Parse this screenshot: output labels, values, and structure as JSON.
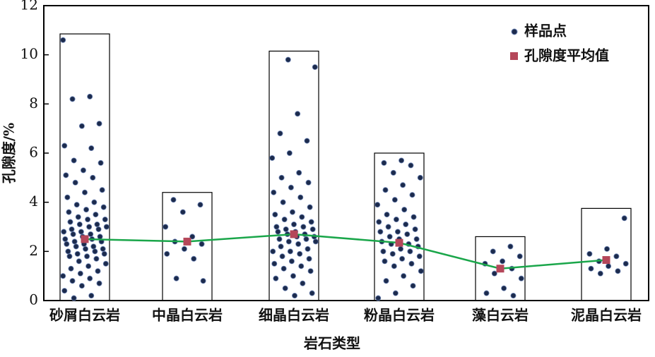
{
  "chart_data": {
    "type": "strip",
    "x_label": "岩石类型",
    "y_label": "孔隙度/%",
    "categories": [
      "砂屑白云岩",
      "中晶白云岩",
      "细晶白云岩",
      "粉晶白云岩",
      "藻白云岩",
      "泥晶白云岩"
    ],
    "box_tops": [
      10.85,
      4.4,
      10.15,
      6.0,
      2.6,
      3.75
    ],
    "series": [
      {
        "name": "样品点",
        "color": "#1c2b4d",
        "values": [
          [
            10.6,
            8.3,
            8.2,
            7.2,
            7.1,
            6.3,
            6.2,
            5.7,
            5.6,
            5.3,
            5.1,
            5.0,
            4.8,
            4.5,
            4.4,
            4.2,
            4.0,
            3.9,
            3.8,
            3.7,
            3.6,
            3.5,
            3.4,
            3.3,
            3.3,
            3.2,
            3.1,
            3.1,
            3.0,
            3.0,
            2.9,
            2.9,
            2.8,
            2.8,
            2.7,
            2.7,
            2.6,
            2.6,
            2.5,
            2.5,
            2.4,
            2.4,
            2.3,
            2.3,
            2.2,
            2.2,
            2.1,
            2.1,
            2.0,
            2.0,
            1.9,
            1.9,
            1.8,
            1.8,
            1.7,
            1.6,
            1.5,
            1.4,
            1.3,
            1.2,
            1.1,
            1.0,
            0.9,
            0.8,
            0.7,
            0.6,
            0.4,
            0.2,
            0.1
          ],
          [
            4.1,
            3.9,
            3.6,
            3.0,
            2.6,
            2.4,
            2.3,
            2.1,
            1.9,
            1.7,
            0.9,
            0.8
          ],
          [
            9.8,
            9.5,
            7.6,
            6.8,
            6.5,
            6.0,
            5.8,
            5.2,
            5.0,
            4.8,
            4.6,
            4.4,
            4.2,
            4.0,
            3.8,
            3.6,
            3.5,
            3.4,
            3.3,
            3.2,
            3.1,
            3.0,
            3.0,
            2.9,
            2.9,
            2.8,
            2.8,
            2.7,
            2.7,
            2.6,
            2.6,
            2.5,
            2.5,
            2.4,
            2.4,
            2.3,
            2.2,
            2.1,
            2.0,
            2.0,
            1.9,
            1.8,
            1.7,
            1.6,
            1.5,
            1.4,
            1.3,
            1.2,
            1.0,
            0.9,
            0.7,
            0.5,
            0.3,
            0.2
          ],
          [
            5.7,
            5.6,
            5.5,
            5.2,
            5.0,
            4.7,
            4.5,
            4.3,
            4.1,
            3.9,
            3.7,
            3.5,
            3.4,
            3.3,
            3.2,
            3.1,
            3.0,
            2.9,
            2.8,
            2.8,
            2.7,
            2.6,
            2.5,
            2.5,
            2.4,
            2.3,
            2.3,
            2.2,
            2.1,
            2.0,
            2.0,
            1.9,
            1.8,
            1.7,
            1.6,
            1.5,
            1.4,
            1.2,
            1.0,
            0.8,
            0.6,
            0.3,
            0.1
          ],
          [
            2.2,
            2.0,
            1.8,
            1.6,
            1.5,
            1.3,
            1.1,
            0.9,
            0.5,
            0.3,
            0.2
          ],
          [
            3.35,
            2.1,
            1.9,
            1.8,
            1.6,
            1.5,
            1.4,
            1.3,
            1.2,
            1.1
          ]
        ]
      },
      {
        "name": "孔隙度平均值",
        "color": "#b5475a",
        "values": [
          2.5,
          2.4,
          2.7,
          2.35,
          1.3,
          1.65
        ]
      }
    ],
    "line_color": "#1aa64a",
    "ylim": [
      0,
      12
    ],
    "yticks": [
      0,
      2,
      4,
      6,
      8,
      10,
      12
    ]
  }
}
